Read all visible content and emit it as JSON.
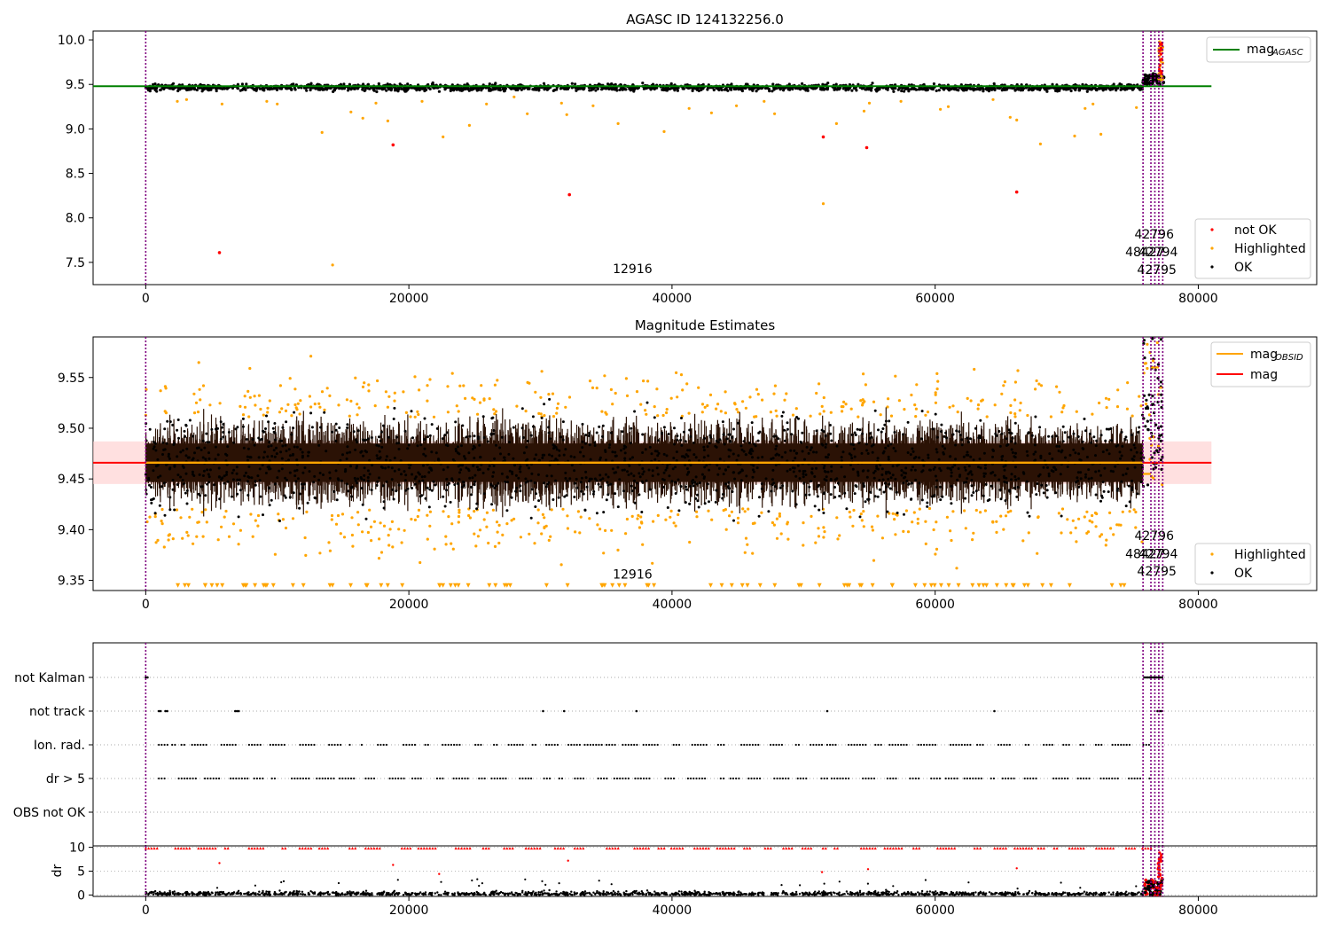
{
  "chart_data": [
    {
      "type": "scatter",
      "title": "AGASC ID 124132256.0",
      "xlim": [
        -4000,
        89000
      ],
      "ylim": [
        7.25,
        10.1
      ],
      "xticks": [
        0,
        20000,
        40000,
        60000,
        80000
      ],
      "xtick_labels": [
        "0",
        "20000",
        "40000",
        "60000",
        "80000"
      ],
      "yticks": [
        7.5,
        8.0,
        8.5,
        9.0,
        9.5,
        10.0
      ],
      "ytick_labels": [
        "7.5",
        "8.0",
        "8.5",
        "9.0",
        "9.5",
        "10.0"
      ],
      "reference_lines": [
        {
          "name": "mag_AGASC",
          "label_main": "mag",
          "label_sub": "AGASC",
          "y": 9.48,
          "x_range": [
            -4000,
            81000
          ],
          "color": "#008000"
        }
      ],
      "obsid_boundaries_x": [
        0,
        75800,
        76400,
        76700,
        77000,
        77300
      ],
      "obsid_labels": [
        {
          "text": "12916",
          "x": 37000,
          "y": 7.38
        },
        {
          "text": "42796",
          "x": 76650,
          "y": 7.77
        },
        {
          "text": "48427",
          "x": 75950,
          "y": 7.57
        },
        {
          "text": "42794",
          "x": 76950,
          "y": 7.57
        },
        {
          "text": "42795",
          "x": 76850,
          "y": 7.37
        }
      ],
      "series": [
        {
          "name": "not OK",
          "color": "#ff0000",
          "points": [
            [
              5600,
              7.61
            ],
            [
              18800,
              8.82
            ],
            [
              32200,
              8.26
            ],
            [
              51500,
              8.91
            ],
            [
              54800,
              8.79
            ],
            [
              66200,
              8.29
            ],
            [
              77200,
              9.95
            ]
          ]
        },
        {
          "name": "Highlighted",
          "color": "#ffa500",
          "points": [
            [
              2400,
              9.31
            ],
            [
              3100,
              9.33
            ],
            [
              5800,
              9.28
            ],
            [
              9200,
              9.31
            ],
            [
              10000,
              9.28
            ],
            [
              13400,
              8.96
            ],
            [
              14200,
              7.47
            ],
            [
              15600,
              9.19
            ],
            [
              16500,
              9.12
            ],
            [
              17500,
              9.29
            ],
            [
              18400,
              9.09
            ],
            [
              21000,
              9.31
            ],
            [
              22600,
              8.91
            ],
            [
              24600,
              9.04
            ],
            [
              25900,
              9.28
            ],
            [
              28000,
              9.36
            ],
            [
              29000,
              9.17
            ],
            [
              31600,
              9.29
            ],
            [
              32000,
              9.16
            ],
            [
              34000,
              9.26
            ],
            [
              35900,
              9.06
            ],
            [
              39400,
              8.97
            ],
            [
              41300,
              9.23
            ],
            [
              43000,
              9.18
            ],
            [
              44900,
              9.26
            ],
            [
              47000,
              9.31
            ],
            [
              47800,
              9.17
            ],
            [
              51500,
              8.16
            ],
            [
              52500,
              9.06
            ],
            [
              54600,
              9.2
            ],
            [
              55000,
              9.29
            ],
            [
              57400,
              9.31
            ],
            [
              60400,
              9.22
            ],
            [
              61000,
              9.25
            ],
            [
              64400,
              9.33
            ],
            [
              65700,
              9.13
            ],
            [
              66200,
              9.1
            ],
            [
              68000,
              8.83
            ],
            [
              70600,
              8.92
            ],
            [
              71400,
              9.23
            ],
            [
              72000,
              9.28
            ],
            [
              72600,
              8.94
            ],
            [
              75300,
              9.24
            ],
            [
              77100,
              9.9
            ],
            [
              77300,
              9.74
            ]
          ]
        },
        {
          "name": "OK",
          "color": "#000000",
          "band": {
            "x_range": [
              0,
              75800
            ],
            "y_center": 9.465,
            "spread": 0.04
          },
          "tail": {
            "x_range": [
              75800,
              77400
            ],
            "y_range": [
              9.5,
              9.62
            ]
          }
        }
      ],
      "legends": [
        {
          "entries": [
            "mag_AGASC"
          ],
          "placement": "upper right"
        },
        {
          "entries": [
            "not OK",
            "Highlighted",
            "OK"
          ],
          "placement": "lower right"
        }
      ]
    },
    {
      "type": "scatter",
      "title": "Magnitude Estimates",
      "xlim": [
        -4000,
        89000
      ],
      "ylim": [
        9.34,
        9.59
      ],
      "xticks": [
        0,
        20000,
        40000,
        60000,
        80000
      ],
      "xtick_labels": [
        "0",
        "20000",
        "40000",
        "60000",
        "80000"
      ],
      "yticks": [
        9.35,
        9.4,
        9.45,
        9.5,
        9.55
      ],
      "ytick_labels": [
        "9.35",
        "9.40",
        "9.45",
        "9.50",
        "9.55"
      ],
      "reference_lines": [
        {
          "name": "mag",
          "label_main": "mag",
          "y": 9.466,
          "x_range": [
            -4000,
            81000
          ],
          "color": "#ff0000",
          "band": [
            9.445,
            9.487
          ]
        },
        {
          "name": "mag_OBSID",
          "label_main": "mag",
          "label_sub": "OBSID",
          "color": "#ffa500",
          "segments": [
            {
              "x": [
                0,
                75800
              ],
              "y": 9.466
            },
            {
              "x": [
                75800,
                76400
              ],
              "y": 9.455
            },
            {
              "x": [
                76400,
                77000
              ],
              "y": 9.56
            },
            {
              "x": [
                77000,
                77300
              ],
              "y": 9.54
            }
          ]
        }
      ],
      "obsid_boundaries_x": [
        0,
        75800,
        76400,
        76700,
        77000,
        77300
      ],
      "obsid_labels": [
        {
          "text": "12916",
          "x": 37000,
          "y": 9.352
        },
        {
          "text": "42796",
          "x": 76650,
          "y": 9.39
        },
        {
          "text": "48427",
          "x": 75950,
          "y": 9.372
        },
        {
          "text": "42794",
          "x": 76950,
          "y": 9.372
        },
        {
          "text": "42795",
          "x": 76850,
          "y": 9.355
        }
      ],
      "series": [
        {
          "name": "Highlighted",
          "color": "#ffa500",
          "band": {
            "x_range": [
              0,
              75800
            ],
            "y_range": [
              9.39,
              9.54
            ]
          },
          "out_of_range_markers_y": 9.345
        },
        {
          "name": "OK",
          "color": "#000000",
          "band": {
            "x_range": [
              0,
              75800
            ],
            "y_center": 9.465,
            "spread": 0.045
          }
        }
      ],
      "legends": [
        {
          "entries": [
            "mag_OBSID",
            "mag"
          ],
          "placement": "upper right"
        },
        {
          "entries": [
            "Highlighted",
            "OK"
          ],
          "placement": "lower right"
        }
      ]
    },
    {
      "type": "scatter",
      "title": "",
      "xlim": [
        -4000,
        89000
      ],
      "categories": [
        "not Kalman",
        "not track",
        "Ion. rad.",
        "dr > 5",
        "OBS not OK"
      ],
      "flag_rows": [
        {
          "label": "not Kalman",
          "x_ranges": [
            [
              0,
              150
            ],
            [
              75900,
              77300
            ]
          ]
        },
        {
          "label": "not track",
          "x_ranges": [
            [
              1000,
              1200
            ],
            [
              1500,
              1700
            ],
            [
              6800,
              7200
            ],
            [
              30200,
              30300
            ],
            [
              31800,
              31900
            ],
            [
              37300,
              37400
            ],
            [
              51800,
              51900
            ],
            [
              64500,
              64600
            ],
            [
              76900,
              77200
            ]
          ]
        },
        {
          "label": "Ion. rad.",
          "x_ranges": [
            [
              1000,
              76500
            ]
          ]
        },
        {
          "label": "dr > 5",
          "x_ranges": [
            [
              1000,
              76500
            ]
          ]
        },
        {
          "label": "OBS not OK",
          "x_ranges": []
        }
      ],
      "obsid_boundaries_x": [
        0,
        75800,
        76400,
        76700,
        77000,
        77300
      ]
    },
    {
      "type": "scatter",
      "title": "",
      "ylabel": "dr",
      "xlim": [
        -4000,
        89000
      ],
      "ylim": [
        -0.3,
        10.3
      ],
      "xticks": [
        0,
        20000,
        40000,
        60000,
        80000
      ],
      "xtick_labels": [
        "0",
        "20000",
        "40000",
        "60000",
        "80000"
      ],
      "yticks": [
        0,
        5,
        10
      ],
      "ytick_labels": [
        "0",
        "5",
        "10"
      ],
      "series": [
        {
          "name": "dr",
          "color": "#000000",
          "band": {
            "x_range": [
              0,
              75800
            ],
            "y_range": [
              0,
              0.8
            ]
          }
        },
        {
          "name": "dr > 5",
          "color": "#ff0000",
          "marker": "triangle",
          "y": 9.8,
          "x_range": [
            0,
            76500
          ],
          "scattered": [
            [
              5600,
              6.7
            ],
            [
              18800,
              6.3
            ],
            [
              22300,
              4.4
            ],
            [
              32100,
              7.2
            ],
            [
              51400,
              4.8
            ],
            [
              54900,
              5.4
            ],
            [
              66200,
              5.6
            ]
          ]
        }
      ],
      "obsid_boundaries_x": [
        0,
        75800,
        76400,
        76700,
        77000,
        77300
      ]
    }
  ]
}
